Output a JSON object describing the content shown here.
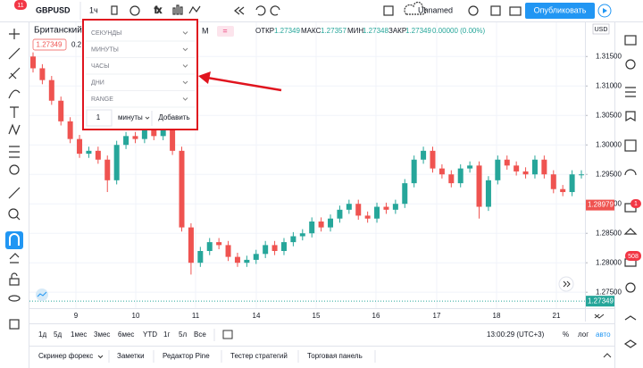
{
  "toolbar": {
    "symbol": "GBPUSD",
    "interval": "1ч",
    "layout_name": "Unnamed",
    "publish": "Опубликовать",
    "badge": "11"
  },
  "header": {
    "name": "Британский",
    "price": "1.27349",
    "change": "0.2",
    "interval_hint": "M",
    "legend": {
      "open_label": "ОТКР",
      "open": 1.27349,
      "high_label": "МАКС",
      "high": 1.27357,
      "low_label": "МИН",
      "low": 1.27348,
      "close_label": "ЗАКР",
      "close": 1.27349,
      "change": "0.00000 (0.00%)"
    }
  },
  "dropdown": {
    "rows": [
      "СЕКУНДЫ",
      "МИНУТЫ",
      "ЧАСЫ",
      "ДНИ",
      "RANGE"
    ],
    "input": "1",
    "unit": "минуты",
    "add": "Добавить"
  },
  "chart_data": {
    "type": "candlestick",
    "currency": "USD",
    "open": [
      1.315,
      1.313,
      1.311,
      1.3075,
      1.304,
      1.301,
      1.2985,
      1.299,
      1.2975,
      1.294,
      1.3,
      1.3015,
      1.301,
      1.3025,
      1.3015,
      1.3035,
      1.299,
      1.286,
      1.28,
      1.282,
      1.2835,
      1.283,
      1.281,
      1.28,
      1.2805,
      1.2815,
      1.283,
      1.282,
      1.2835,
      1.2845,
      1.285,
      1.287,
      1.286,
      1.2875,
      1.289,
      1.29,
      1.288,
      1.2875,
      1.2895,
      1.289,
      1.29,
      1.2935,
      1.2975,
      1.299,
      1.296,
      1.295,
      1.2935,
      1.296,
      1.2965,
      1.2895,
      1.294,
      1.2975,
      1.2965,
      1.2955,
      1.295,
      1.2975,
      1.295,
      1.2925,
      1.292,
      1.295
    ],
    "high": [
      1.3157,
      1.3137,
      1.3117,
      1.3082,
      1.3047,
      1.3017,
      1.2997,
      1.2997,
      1.2982,
      1.3007,
      1.3022,
      1.3022,
      1.3032,
      1.3032,
      1.3042,
      1.3042,
      1.2997,
      1.2867,
      1.2827,
      1.2842,
      1.2842,
      1.2837,
      1.2817,
      1.2812,
      1.2822,
      1.2837,
      1.2837,
      1.2842,
      1.2852,
      1.2857,
      1.2877,
      1.2877,
      1.2882,
      1.2897,
      1.2907,
      1.2907,
      1.2887,
      1.2902,
      1.2902,
      1.2907,
      1.2942,
      1.2982,
      1.2997,
      1.2997,
      1.2967,
      1.2957,
      1.2967,
      1.2972,
      1.2972,
      1.2947,
      1.2982,
      1.2982,
      1.2972,
      1.2962,
      1.2982,
      1.2982,
      1.2957,
      1.2932,
      1.2957,
      1.2957
    ],
    "low": [
      1.3123,
      1.3103,
      1.3068,
      1.3033,
      1.3003,
      1.2978,
      1.2978,
      1.2968,
      1.292,
      1.2933,
      1.2993,
      1.3003,
      1.3003,
      1.3008,
      1.3008,
      1.2983,
      1.2853,
      1.278,
      1.2793,
      1.2813,
      1.2823,
      1.2803,
      1.2793,
      1.2793,
      1.2798,
      1.2808,
      1.2813,
      1.2813,
      1.2828,
      1.2838,
      1.2843,
      1.2853,
      1.2853,
      1.2868,
      1.2883,
      1.2873,
      1.2868,
      1.2868,
      1.2883,
      1.2883,
      1.2893,
      1.2928,
      1.2968,
      1.2953,
      1.2943,
      1.2928,
      1.2928,
      1.2953,
      1.2875,
      1.2888,
      1.2933,
      1.2958,
      1.2948,
      1.2943,
      1.2943,
      1.2943,
      1.2918,
      1.2913,
      1.2913,
      1.2943
    ],
    "close": [
      1.313,
      1.311,
      1.3075,
      1.304,
      1.301,
      1.2985,
      1.299,
      1.2975,
      1.294,
      1.3,
      1.3015,
      1.301,
      1.3025,
      1.3015,
      1.3035,
      1.299,
      1.286,
      1.28,
      1.282,
      1.2835,
      1.283,
      1.281,
      1.28,
      1.2805,
      1.2815,
      1.283,
      1.282,
      1.2835,
      1.2845,
      1.285,
      1.287,
      1.286,
      1.2875,
      1.289,
      1.29,
      1.288,
      1.2875,
      1.2895,
      1.289,
      1.29,
      1.2935,
      1.2975,
      1.299,
      1.296,
      1.295,
      1.2935,
      1.296,
      1.2965,
      1.2895,
      1.294,
      1.2975,
      1.2965,
      1.2955,
      1.295,
      1.2975,
      1.295,
      1.2925,
      1.292,
      1.295,
      1.295
    ],
    "up_color": "#26a69a",
    "down_color": "#ef5350",
    "ylim": [
      1.2723,
      1.3208
    ],
    "yticks": [
      {
        "value": 1.275,
        "label": "1.27500"
      },
      {
        "value": 1.28,
        "label": "1.28000"
      },
      {
        "value": 1.285,
        "label": "1.28500"
      },
      {
        "value": 1.29,
        "label": "1.29000"
      },
      {
        "value": 1.295,
        "label": "1.29500"
      },
      {
        "value": 1.3,
        "label": "1.30000"
      },
      {
        "value": 1.305,
        "label": "1.30500"
      },
      {
        "value": 1.31,
        "label": "1.31000"
      },
      {
        "value": 1.315,
        "label": "1.31500"
      }
    ],
    "xtick_labels": [
      "9",
      "10",
      "11",
      "14",
      "15",
      "16",
      "17",
      "18",
      "21"
    ],
    "grid": true,
    "alert_price": 1.28979,
    "last_price": 1.27349
  },
  "range_bar": {
    "ranges": [
      "1д",
      "5д",
      "1мес",
      "3мес",
      "6мес",
      "YTD",
      "1г",
      "5л",
      "Все"
    ],
    "clock": "13:00:29 (UTC+3)",
    "percent": "%",
    "log": "лог",
    "auto": "авто"
  },
  "tabs": [
    "Скринер форекс",
    "Заметки",
    "Редактор Pine",
    "Тестер стратегий",
    "Торговая панель"
  ],
  "right_badges": [
    "1",
    "508"
  ]
}
